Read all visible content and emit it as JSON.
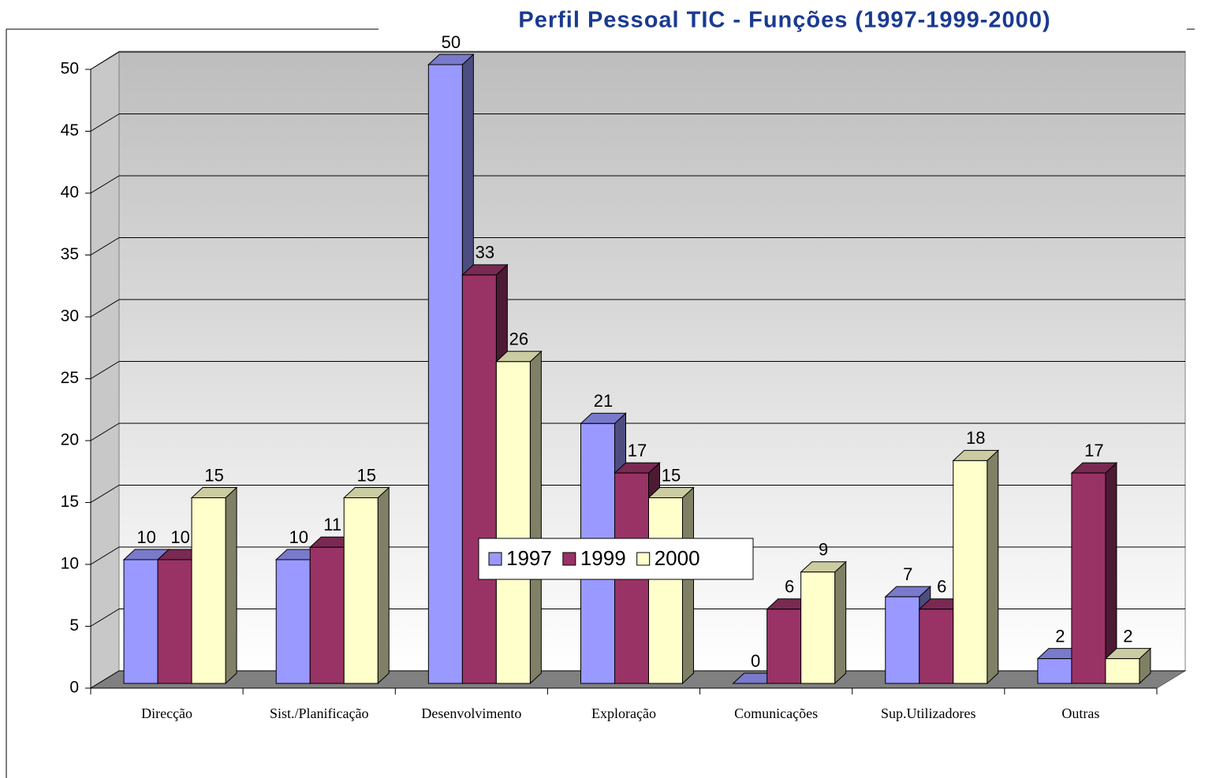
{
  "chart_data": {
    "type": "bar",
    "title": "Perfil Pessoal TIC - Funções  (1997-1999-2000)",
    "categories": [
      "Direcção",
      "Sist./Planificação",
      "Desenvolvimento",
      "Exploração",
      "Comunicações",
      "Sup.Utilizadores",
      "Outras"
    ],
    "series": [
      {
        "name": "1997",
        "color": "#9999ff",
        "values": [
          10,
          10,
          50,
          21,
          0,
          7,
          2
        ]
      },
      {
        "name": "1999",
        "color": "#993366",
        "values": [
          10,
          11,
          33,
          17,
          6,
          6,
          17
        ]
      },
      {
        "name": "2000",
        "color": "#ffffcc",
        "values": [
          15,
          15,
          26,
          15,
          9,
          18,
          2
        ]
      }
    ],
    "ylim": [
      0,
      50
    ],
    "yticks": [
      0,
      5,
      10,
      15,
      20,
      25,
      30,
      35,
      40,
      45,
      50
    ],
    "grid": true,
    "legend": "bottom"
  }
}
